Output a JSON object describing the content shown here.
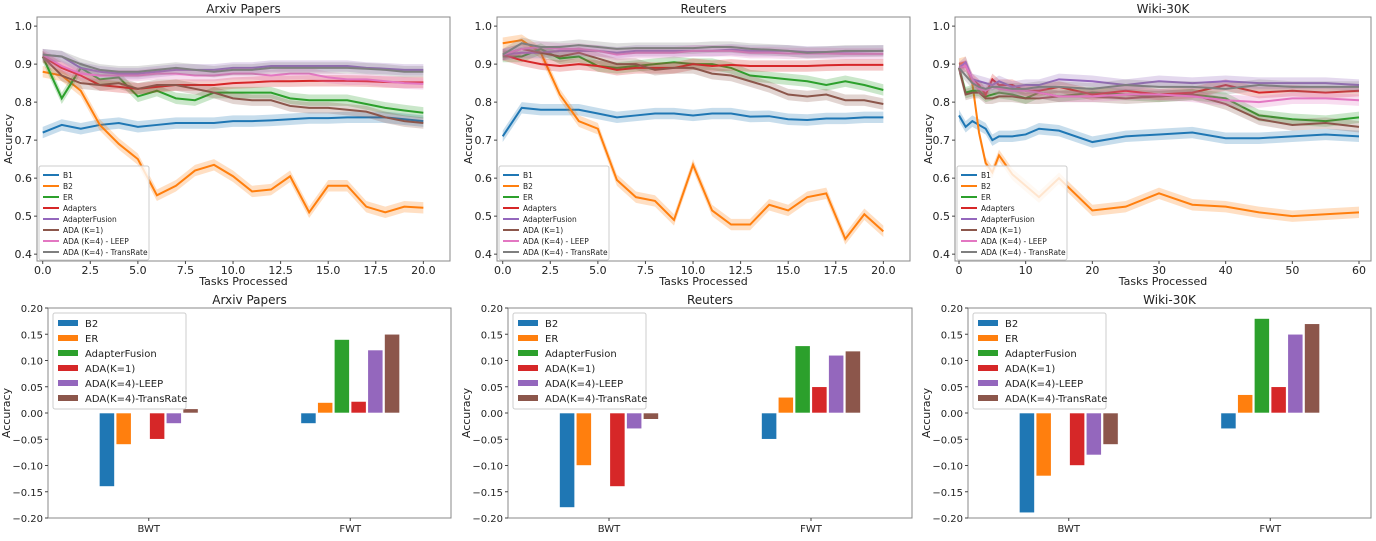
{
  "colors": {
    "B1": "#1f77b4",
    "B2": "#ff7f0e",
    "ER": "#2ca02c",
    "Adapters": "#d62728",
    "AdapterFusion": "#9467bd",
    "ADA (K=1)": "#8c564b",
    "ADA (K=4) - LEEP": "#e377c2",
    "ADA (K=4) - TransRate": "#7f7f7f"
  },
  "bar_colors": [
    "#1f77b4",
    "#ff7f0e",
    "#2ca02c",
    "#d62728",
    "#9467bd",
    "#8c564b"
  ],
  "chart_data": [
    {
      "type": "line",
      "title": "Arxiv Papers",
      "xlabel": "Tasks Processed",
      "ylabel": "Accuracy",
      "xlim": [
        -0.3,
        21.4
      ],
      "ylim": [
        0.382,
        1.024
      ],
      "xticks": [
        0,
        2.5,
        5,
        7.5,
        10,
        12.5,
        15,
        17.5,
        20
      ],
      "xtick_labels": [
        "0.0",
        "2.5",
        "5.0",
        "7.5",
        "10.0",
        "12.5",
        "15.0",
        "17.5",
        "20.0"
      ],
      "yticks": [
        0.4,
        0.5,
        0.6,
        0.7,
        0.8,
        0.9,
        1.0
      ],
      "ytick_labels": [
        "0.4",
        "0.5",
        "0.6",
        "0.7",
        "0.8",
        "0.9",
        "1.0"
      ],
      "legend": "lower-left",
      "x": [
        0,
        1,
        2,
        3,
        4,
        5,
        6,
        7,
        8,
        9,
        10,
        11,
        12,
        13,
        14,
        15,
        16,
        17,
        18,
        19,
        20
      ],
      "series": [
        {
          "name": "B1",
          "values": [
            0.72,
            0.74,
            0.73,
            0.74,
            0.745,
            0.735,
            0.74,
            0.745,
            0.745,
            0.745,
            0.75,
            0.75,
            0.752,
            0.755,
            0.758,
            0.758,
            0.76,
            0.76,
            0.76,
            0.755,
            0.75
          ]
        },
        {
          "name": "B2",
          "values": [
            0.88,
            0.87,
            0.83,
            0.74,
            0.69,
            0.65,
            0.555,
            0.58,
            0.62,
            0.635,
            0.605,
            0.565,
            0.57,
            0.605,
            0.51,
            0.58,
            0.58,
            0.525,
            0.51,
            0.525,
            0.522
          ]
        },
        {
          "name": "ER",
          "values": [
            0.92,
            0.81,
            0.89,
            0.86,
            0.865,
            0.815,
            0.83,
            0.81,
            0.805,
            0.825,
            0.825,
            0.825,
            0.825,
            0.81,
            0.805,
            0.805,
            0.805,
            0.795,
            0.785,
            0.778,
            0.772
          ]
        },
        {
          "name": "Adapters",
          "values": [
            0.92,
            0.89,
            0.87,
            0.845,
            0.84,
            0.835,
            0.84,
            0.845,
            0.845,
            0.845,
            0.85,
            0.852,
            0.855,
            0.855,
            0.856,
            0.856,
            0.856,
            0.855,
            0.853,
            0.852,
            0.852
          ]
        },
        {
          "name": "AdapterFusion",
          "values": [
            0.925,
            0.92,
            0.89,
            0.88,
            0.875,
            0.875,
            0.88,
            0.885,
            0.885,
            0.885,
            0.89,
            0.89,
            0.895,
            0.895,
            0.895,
            0.895,
            0.895,
            0.89,
            0.888,
            0.885,
            0.885
          ]
        },
        {
          "name": "ADA (K=1)",
          "values": [
            0.92,
            0.87,
            0.85,
            0.845,
            0.85,
            0.835,
            0.845,
            0.845,
            0.835,
            0.825,
            0.81,
            0.805,
            0.805,
            0.79,
            0.785,
            0.785,
            0.78,
            0.775,
            0.76,
            0.75,
            0.745
          ]
        },
        {
          "name": "ADA (K=4) - LEEP",
          "values": [
            0.925,
            0.895,
            0.875,
            0.87,
            0.87,
            0.87,
            0.875,
            0.875,
            0.87,
            0.87,
            0.875,
            0.875,
            0.87,
            0.875,
            0.875,
            0.865,
            0.86,
            0.86,
            0.855,
            0.85,
            0.848
          ]
        },
        {
          "name": "ADA (K=4) - TransRate",
          "values": [
            0.925,
            0.92,
            0.9,
            0.885,
            0.88,
            0.88,
            0.885,
            0.89,
            0.885,
            0.88,
            0.885,
            0.885,
            0.89,
            0.89,
            0.89,
            0.89,
            0.89,
            0.888,
            0.885,
            0.88,
            0.88
          ]
        }
      ]
    },
    {
      "type": "line",
      "title": "Reuters",
      "xlabel": "Tasks Processed",
      "ylabel": "Accuracy",
      "xlim": [
        -0.3,
        21.4
      ],
      "ylim": [
        0.382,
        1.024
      ],
      "xticks": [
        0,
        2.5,
        5,
        7.5,
        10,
        12.5,
        15,
        17.5,
        20
      ],
      "xtick_labels": [
        "0.0",
        "2.5",
        "5.0",
        "7.5",
        "10.0",
        "12.5",
        "15.0",
        "17.5",
        "20.0"
      ],
      "yticks": [
        0.4,
        0.5,
        0.6,
        0.7,
        0.8,
        0.9,
        1.0
      ],
      "ytick_labels": [
        "0.4",
        "0.5",
        "0.6",
        "0.7",
        "0.8",
        "0.9",
        "1.0"
      ],
      "legend": "lower-left",
      "x": [
        0,
        1,
        2,
        3,
        4,
        5,
        6,
        7,
        8,
        9,
        10,
        11,
        12,
        13,
        14,
        15,
        16,
        17,
        18,
        19,
        20
      ],
      "series": [
        {
          "name": "B1",
          "values": [
            0.71,
            0.785,
            0.78,
            0.78,
            0.78,
            0.77,
            0.76,
            0.765,
            0.77,
            0.77,
            0.765,
            0.77,
            0.77,
            0.762,
            0.763,
            0.755,
            0.753,
            0.757,
            0.757,
            0.76,
            0.76
          ]
        },
        {
          "name": "B2",
          "values": [
            0.955,
            0.963,
            0.93,
            0.82,
            0.75,
            0.73,
            0.595,
            0.55,
            0.54,
            0.49,
            0.635,
            0.515,
            0.478,
            0.478,
            0.53,
            0.515,
            0.55,
            0.56,
            0.44,
            0.505,
            0.46
          ]
        },
        {
          "name": "ER",
          "values": [
            0.92,
            0.92,
            0.94,
            0.915,
            0.92,
            0.895,
            0.89,
            0.895,
            0.9,
            0.905,
            0.9,
            0.9,
            0.89,
            0.87,
            0.865,
            0.86,
            0.855,
            0.845,
            0.855,
            0.845,
            0.832
          ]
        },
        {
          "name": "Adapters",
          "values": [
            0.925,
            0.91,
            0.9,
            0.895,
            0.9,
            0.895,
            0.885,
            0.89,
            0.89,
            0.89,
            0.9,
            0.895,
            0.898,
            0.895,
            0.895,
            0.895,
            0.895,
            0.897,
            0.898,
            0.898,
            0.898
          ]
        },
        {
          "name": "AdapterFusion",
          "values": [
            0.925,
            0.93,
            0.93,
            0.935,
            0.935,
            0.935,
            0.93,
            0.935,
            0.935,
            0.935,
            0.935,
            0.935,
            0.938,
            0.935,
            0.935,
            0.935,
            0.932,
            0.932,
            0.933,
            0.934,
            0.935
          ]
        },
        {
          "name": "ADA (K=1)",
          "values": [
            0.925,
            0.94,
            0.93,
            0.92,
            0.93,
            0.915,
            0.9,
            0.9,
            0.885,
            0.89,
            0.89,
            0.875,
            0.87,
            0.855,
            0.84,
            0.82,
            0.815,
            0.82,
            0.805,
            0.805,
            0.795
          ]
        },
        {
          "name": "ADA (K=4) - LEEP",
          "values": [
            0.925,
            0.94,
            0.945,
            0.94,
            0.94,
            0.935,
            0.925,
            0.93,
            0.93,
            0.93,
            0.935,
            0.935,
            0.935,
            0.93,
            0.93,
            0.928,
            0.928,
            0.928,
            0.927,
            0.927,
            0.927
          ]
        },
        {
          "name": "ADA (K=4) - TransRate",
          "values": [
            0.925,
            0.955,
            0.945,
            0.945,
            0.95,
            0.945,
            0.94,
            0.942,
            0.942,
            0.942,
            0.942,
            0.945,
            0.945,
            0.94,
            0.938,
            0.935,
            0.93,
            0.932,
            0.935,
            0.935,
            0.935
          ]
        }
      ]
    },
    {
      "type": "line",
      "title": "Wiki-30K",
      "xlabel": "Tasks Processed",
      "ylabel": "Accuracy",
      "xlim": [
        -0.6,
        61.8
      ],
      "ylim": [
        0.382,
        1.024
      ],
      "xticks": [
        0,
        10,
        20,
        30,
        40,
        50,
        60
      ],
      "xtick_labels": [
        "0",
        "10",
        "20",
        "30",
        "40",
        "50",
        "60"
      ],
      "yticks": [
        0.4,
        0.5,
        0.6,
        0.7,
        0.8,
        0.9,
        1.0
      ],
      "ytick_labels": [
        "0.4",
        "0.5",
        "0.6",
        "0.7",
        "0.8",
        "0.9",
        "1.0"
      ],
      "legend": "lower-left",
      "x": [
        0,
        1,
        2,
        3,
        4,
        5,
        6,
        8,
        10,
        12,
        15,
        20,
        25,
        30,
        35,
        40,
        45,
        50,
        55,
        60
      ],
      "series": [
        {
          "name": "B1",
          "values": [
            0.765,
            0.735,
            0.75,
            0.74,
            0.73,
            0.7,
            0.71,
            0.71,
            0.715,
            0.73,
            0.725,
            0.695,
            0.71,
            0.715,
            0.72,
            0.705,
            0.705,
            0.71,
            0.715,
            0.71
          ]
        },
        {
          "name": "B2",
          "values": [
            0.9,
            0.905,
            0.85,
            0.72,
            0.64,
            0.615,
            0.66,
            0.61,
            0.58,
            0.55,
            0.6,
            0.515,
            0.525,
            0.56,
            0.53,
            0.525,
            0.51,
            0.5,
            0.505,
            0.51
          ]
        },
        {
          "name": "ER",
          "values": [
            0.89,
            0.825,
            0.83,
            0.83,
            0.815,
            0.82,
            0.825,
            0.82,
            0.81,
            0.825,
            0.815,
            0.825,
            0.82,
            0.815,
            0.82,
            0.81,
            0.765,
            0.755,
            0.75,
            0.76
          ]
        },
        {
          "name": "Adapters",
          "values": [
            0.89,
            0.895,
            0.86,
            0.845,
            0.82,
            0.86,
            0.845,
            0.845,
            0.83,
            0.83,
            0.84,
            0.82,
            0.83,
            0.82,
            0.825,
            0.845,
            0.825,
            0.83,
            0.825,
            0.83
          ]
        },
        {
          "name": "AdapterFusion",
          "values": [
            0.89,
            0.905,
            0.86,
            0.855,
            0.85,
            0.845,
            0.855,
            0.84,
            0.845,
            0.845,
            0.86,
            0.855,
            0.845,
            0.855,
            0.85,
            0.855,
            0.85,
            0.85,
            0.85,
            0.845
          ]
        },
        {
          "name": "ADA (K=1)",
          "values": [
            0.89,
            0.82,
            0.825,
            0.825,
            0.81,
            0.81,
            0.815,
            0.815,
            0.81,
            0.81,
            0.815,
            0.815,
            0.81,
            0.815,
            0.82,
            0.795,
            0.755,
            0.74,
            0.745,
            0.735
          ]
        },
        {
          "name": "ADA (K=4) - LEEP",
          "values": [
            0.89,
            0.895,
            0.86,
            0.835,
            0.83,
            0.84,
            0.835,
            0.83,
            0.83,
            0.825,
            0.815,
            0.815,
            0.82,
            0.82,
            0.815,
            0.805,
            0.8,
            0.81,
            0.81,
            0.805
          ]
        },
        {
          "name": "ADA (K=4) - TransRate",
          "values": [
            0.89,
            0.87,
            0.85,
            0.84,
            0.835,
            0.84,
            0.84,
            0.835,
            0.835,
            0.84,
            0.84,
            0.835,
            0.845,
            0.84,
            0.84,
            0.835,
            0.845,
            0.84,
            0.84,
            0.84
          ]
        }
      ]
    },
    {
      "type": "bar",
      "title": "Arxiv Papers",
      "ylabel": "Accuracy",
      "ylim": [
        -0.2,
        0.2
      ],
      "legend": "upper-left",
      "categories": [
        "BWT",
        "FWT"
      ],
      "yticks": [
        -0.2,
        -0.15,
        -0.1,
        -0.05,
        0,
        0.05,
        0.1,
        0.15,
        0.2
      ],
      "ytick_labels": [
        "−0.20",
        "−0.15",
        "−0.10",
        "−0.05",
        "0.00",
        "0.05",
        "0.10",
        "0.15",
        "0.20"
      ],
      "series": [
        {
          "name": "B2",
          "values": [
            -0.14,
            -0.02
          ]
        },
        {
          "name": "ER",
          "values": [
            -0.06,
            0.02
          ]
        },
        {
          "name": "AdapterFusion",
          "values": [
            0,
            0.14
          ]
        },
        {
          "name": "ADA(K=1)",
          "values": [
            -0.05,
            0.022
          ]
        },
        {
          "name": "ADA(K=4)-LEEP",
          "values": [
            -0.02,
            0.12
          ]
        },
        {
          "name": "ADA(K=4)-TransRate",
          "values": [
            0.008,
            0.15
          ]
        }
      ]
    },
    {
      "type": "bar",
      "title": "Reuters",
      "ylabel": "Accuracy",
      "ylim": [
        -0.2,
        0.2
      ],
      "legend": "upper-left",
      "categories": [
        "BWT",
        "FWT"
      ],
      "yticks": [
        -0.2,
        -0.15,
        -0.1,
        -0.05,
        0,
        0.05,
        0.1,
        0.15,
        0.2
      ],
      "ytick_labels": [
        "−0.20",
        "−0.15",
        "−0.10",
        "−0.05",
        "0.00",
        "0.05",
        "0.10",
        "0.15",
        "0.20"
      ],
      "series": [
        {
          "name": "B2",
          "values": [
            -0.18,
            -0.05
          ]
        },
        {
          "name": "ER",
          "values": [
            -0.1,
            0.03
          ]
        },
        {
          "name": "AdapterFusion",
          "values": [
            0,
            0.128
          ]
        },
        {
          "name": "ADA(K=1)",
          "values": [
            -0.14,
            0.05
          ]
        },
        {
          "name": "ADA(K=4)-LEEP",
          "values": [
            -0.03,
            0.11
          ]
        },
        {
          "name": "ADA(K=4)-TransRate",
          "values": [
            -0.012,
            0.118
          ]
        }
      ]
    },
    {
      "type": "bar",
      "title": "Wiki-30K",
      "ylabel": "Accuracy",
      "ylim": [
        -0.2,
        0.2
      ],
      "legend": "upper-left",
      "categories": [
        "BWT",
        "FWT"
      ],
      "yticks": [
        -0.2,
        -0.15,
        -0.1,
        -0.05,
        0,
        0.05,
        0.1,
        0.15,
        0.2
      ],
      "ytick_labels": [
        "−0.20",
        "−0.15",
        "−0.10",
        "−0.05",
        "0.00",
        "0.05",
        "0.10",
        "0.15",
        "0.20"
      ],
      "series": [
        {
          "name": "B2",
          "values": [
            -0.19,
            -0.03
          ]
        },
        {
          "name": "ER",
          "values": [
            -0.12,
            0.035
          ]
        },
        {
          "name": "AdapterFusion",
          "values": [
            0,
            0.18
          ]
        },
        {
          "name": "ADA(K=1)",
          "values": [
            -0.1,
            0.05
          ]
        },
        {
          "name": "ADA(K=4)-LEEP",
          "values": [
            -0.08,
            0.15
          ]
        },
        {
          "name": "ADA(K=4)-TransRate",
          "values": [
            -0.06,
            0.17
          ]
        }
      ]
    }
  ]
}
